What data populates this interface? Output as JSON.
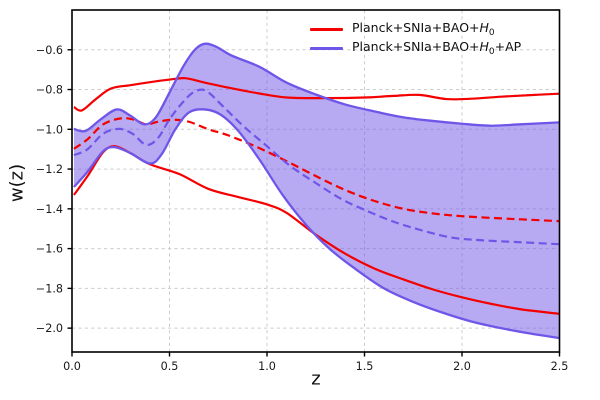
{
  "chart_data": {
    "type": "line",
    "title": "",
    "xlabel": "z",
    "ylabel": "w(z)",
    "xlim": [
      0,
      2.5
    ],
    "ylim": [
      -2.12,
      -0.4
    ],
    "grid": true,
    "grid_color": "#cccccc",
    "x_ticks": {
      "values": [
        0,
        0.5,
        1.0,
        1.5,
        2.0,
        2.5
      ],
      "labels": [
        "0.0",
        "0.5",
        "1.0",
        "1.5",
        "2.0",
        "2.5"
      ]
    },
    "y_ticks": {
      "values": [
        -0.6,
        -0.8,
        -1.0,
        -1.2,
        -1.4,
        -1.6,
        -1.8,
        -2.0
      ],
      "labels": [
        "−0.6",
        "−0.8",
        "−1.0",
        "−1.2",
        "−1.4",
        "−1.6",
        "−1.8",
        "−2.0"
      ]
    },
    "legend_position": "upper right",
    "legend_frame": false,
    "series": [
      {
        "name": "Planck+SNIa+BAO+H0",
        "color": "#f40000",
        "mean_linestyle": "dashed",
        "bound_linestyle": "solid",
        "mean": [
          [
            0.01,
            -1.098
          ],
          [
            0.08,
            -1.05
          ],
          [
            0.16,
            -0.975
          ],
          [
            0.25,
            -0.945
          ],
          [
            0.32,
            -0.952
          ],
          [
            0.38,
            -0.975
          ],
          [
            0.45,
            -0.96
          ],
          [
            0.52,
            -0.952
          ],
          [
            0.6,
            -0.962
          ],
          [
            0.7,
            -1.0
          ],
          [
            0.8,
            -1.03
          ],
          [
            0.95,
            -1.09
          ],
          [
            1.1,
            -1.16
          ],
          [
            1.25,
            -1.235
          ],
          [
            1.4,
            -1.305
          ],
          [
            1.55,
            -1.36
          ],
          [
            1.7,
            -1.4
          ],
          [
            1.85,
            -1.423
          ],
          [
            2.0,
            -1.437
          ],
          [
            2.2,
            -1.448
          ],
          [
            2.35,
            -1.455
          ],
          [
            2.5,
            -1.462
          ]
        ],
        "upper": [
          [
            0.01,
            -0.888
          ],
          [
            0.05,
            -0.905
          ],
          [
            0.12,
            -0.85
          ],
          [
            0.2,
            -0.795
          ],
          [
            0.3,
            -0.778
          ],
          [
            0.4,
            -0.763
          ],
          [
            0.5,
            -0.75
          ],
          [
            0.58,
            -0.743
          ],
          [
            0.68,
            -0.765
          ],
          [
            0.8,
            -0.79
          ],
          [
            0.95,
            -0.818
          ],
          [
            1.1,
            -0.84
          ],
          [
            1.3,
            -0.843
          ],
          [
            1.5,
            -0.84
          ],
          [
            1.65,
            -0.832
          ],
          [
            1.78,
            -0.827
          ],
          [
            1.92,
            -0.848
          ],
          [
            2.05,
            -0.846
          ],
          [
            2.2,
            -0.836
          ],
          [
            2.35,
            -0.828
          ],
          [
            2.5,
            -0.821
          ]
        ],
        "lower": [
          [
            0.01,
            -1.33
          ],
          [
            0.08,
            -1.235
          ],
          [
            0.16,
            -1.115
          ],
          [
            0.22,
            -1.085
          ],
          [
            0.3,
            -1.12
          ],
          [
            0.4,
            -1.176
          ],
          [
            0.55,
            -1.225
          ],
          [
            0.7,
            -1.3
          ],
          [
            0.85,
            -1.34
          ],
          [
            1.0,
            -1.378
          ],
          [
            1.1,
            -1.42
          ],
          [
            1.25,
            -1.53
          ],
          [
            1.4,
            -1.625
          ],
          [
            1.55,
            -1.7
          ],
          [
            1.7,
            -1.755
          ],
          [
            1.85,
            -1.805
          ],
          [
            2.0,
            -1.845
          ],
          [
            2.15,
            -1.878
          ],
          [
            2.3,
            -1.905
          ],
          [
            2.5,
            -1.928
          ]
        ]
      },
      {
        "name": "Planck+SNIa+BAO+H0+AP",
        "color": "#6f56e8",
        "fill_opacity": 0.5,
        "mean_linestyle": "dashed",
        "bound_linestyle": "solid-band",
        "mean": [
          [
            0.01,
            -1.13
          ],
          [
            0.08,
            -1.1
          ],
          [
            0.16,
            -1.022
          ],
          [
            0.24,
            -0.998
          ],
          [
            0.31,
            -1.022
          ],
          [
            0.38,
            -1.078
          ],
          [
            0.44,
            -1.045
          ],
          [
            0.5,
            -0.95
          ],
          [
            0.57,
            -0.862
          ],
          [
            0.63,
            -0.81
          ],
          [
            0.69,
            -0.808
          ],
          [
            0.78,
            -0.89
          ],
          [
            0.88,
            -0.985
          ],
          [
            1.0,
            -1.085
          ],
          [
            1.12,
            -1.185
          ],
          [
            1.25,
            -1.27
          ],
          [
            1.38,
            -1.35
          ],
          [
            1.5,
            -1.405
          ],
          [
            1.65,
            -1.465
          ],
          [
            1.8,
            -1.51
          ],
          [
            1.95,
            -1.545
          ],
          [
            2.1,
            -1.558
          ],
          [
            2.3,
            -1.568
          ],
          [
            2.5,
            -1.578
          ]
        ],
        "upper": [
          [
            0.01,
            -0.998
          ],
          [
            0.07,
            -1.008
          ],
          [
            0.15,
            -0.948
          ],
          [
            0.23,
            -0.9
          ],
          [
            0.3,
            -0.932
          ],
          [
            0.37,
            -0.975
          ],
          [
            0.43,
            -0.94
          ],
          [
            0.5,
            -0.815
          ],
          [
            0.57,
            -0.685
          ],
          [
            0.63,
            -0.6
          ],
          [
            0.68,
            -0.57
          ],
          [
            0.74,
            -0.585
          ],
          [
            0.82,
            -0.63
          ],
          [
            0.96,
            -0.685
          ],
          [
            1.1,
            -0.765
          ],
          [
            1.25,
            -0.825
          ],
          [
            1.4,
            -0.875
          ],
          [
            1.55,
            -0.91
          ],
          [
            1.7,
            -0.94
          ],
          [
            1.85,
            -0.958
          ],
          [
            2.0,
            -0.972
          ],
          [
            2.15,
            -0.982
          ],
          [
            2.3,
            -0.975
          ],
          [
            2.5,
            -0.965
          ]
        ],
        "lower": [
          [
            0.01,
            -1.29
          ],
          [
            0.08,
            -1.213
          ],
          [
            0.16,
            -1.11
          ],
          [
            0.22,
            -1.09
          ],
          [
            0.3,
            -1.12
          ],
          [
            0.4,
            -1.172
          ],
          [
            0.46,
            -1.125
          ],
          [
            0.53,
            -1.0
          ],
          [
            0.6,
            -0.915
          ],
          [
            0.68,
            -0.9
          ],
          [
            0.76,
            -0.925
          ],
          [
            0.85,
            -1.005
          ],
          [
            0.96,
            -1.15
          ],
          [
            1.08,
            -1.33
          ],
          [
            1.2,
            -1.48
          ],
          [
            1.32,
            -1.6
          ],
          [
            1.45,
            -1.7
          ],
          [
            1.6,
            -1.8
          ],
          [
            1.75,
            -1.868
          ],
          [
            1.9,
            -1.922
          ],
          [
            2.05,
            -1.967
          ],
          [
            2.2,
            -2.0
          ],
          [
            2.35,
            -2.027
          ],
          [
            2.5,
            -2.05
          ]
        ]
      }
    ]
  },
  "legend": {
    "items": [
      {
        "pre": "Planck+SNIa+BAO+",
        "h": "H",
        "sub": "0",
        "post": ""
      },
      {
        "pre": "Planck+SNIa+BAO+",
        "h": "H",
        "sub": "0",
        "post": "+AP"
      }
    ]
  }
}
